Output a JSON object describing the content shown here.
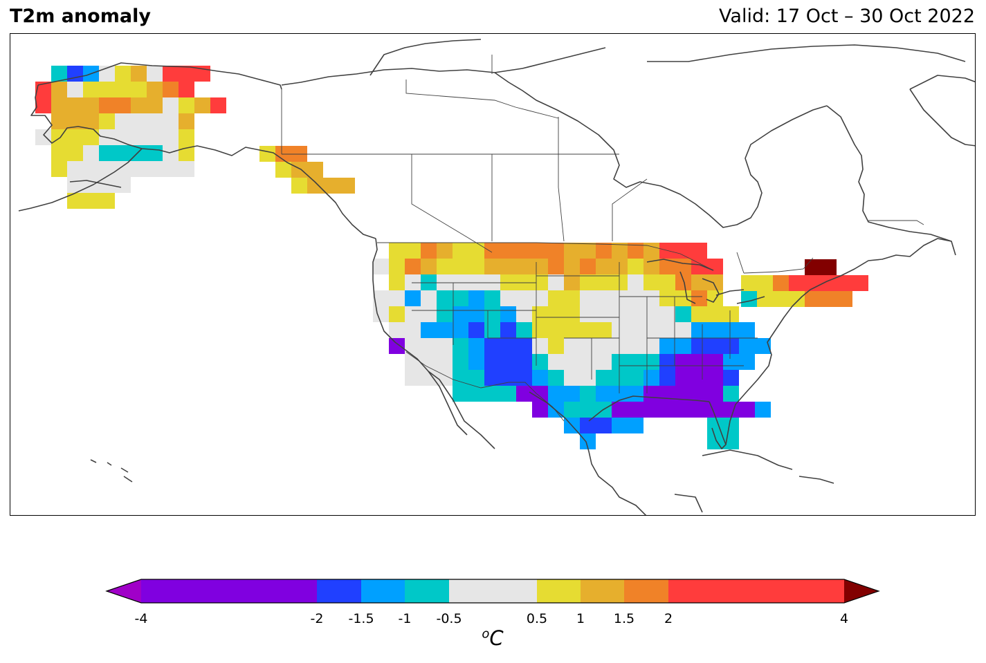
{
  "header": {
    "title": "T2m anomaly",
    "valid": "Valid: 17 Oct – 30 Oct 2022"
  },
  "colorbar": {
    "unit": "C",
    "unit_prefix": "o",
    "ticks": [
      "-4",
      "-2",
      "-1.5",
      "-1",
      "-0.5",
      "0.5",
      "1",
      "1.5",
      "2",
      "4"
    ],
    "bins": [
      {
        "from": -4,
        "to": -2,
        "color": "#8000e0"
      },
      {
        "from": -2,
        "to": -1.5,
        "color": "#2040ff"
      },
      {
        "from": -1.5,
        "to": -1,
        "color": "#00a0ff"
      },
      {
        "from": -1,
        "to": -0.5,
        "color": "#00c8c8"
      },
      {
        "from": -0.5,
        "to": 0.5,
        "color": "#e6e6e6"
      },
      {
        "from": 0.5,
        "to": 1,
        "color": "#e6dc32"
      },
      {
        "from": 1,
        "to": 1.5,
        "color": "#e6af2d"
      },
      {
        "from": 1.5,
        "to": 2,
        "color": "#f08228"
      },
      {
        "from": 2,
        "to": 4,
        "color": "#ff3c3c"
      }
    ],
    "under_color": "#a000c8",
    "over_color": "#820000"
  },
  "map_data": {
    "region": "North America",
    "projection": "PlateCarree",
    "features": [
      "coastlines",
      "country borders",
      "US state borders",
      "Canadian province borders"
    ],
    "regions_summary": [
      {
        "region": "Northern Alaska",
        "anomaly": "0.5 to 4"
      },
      {
        "region": "Southern Alaska",
        "anomaly": "-1 to 0.5"
      },
      {
        "region": "Northern Plains / Upper Midwest",
        "anomaly": "1 to 4"
      },
      {
        "region": "Northern Maine",
        "anomaly": "> 4"
      },
      {
        "region": "Southern Plains / Texas",
        "anomaly": "-2 to -1"
      },
      {
        "region": "Gulf Coast / Deep South",
        "anomaly": "-4 to -2"
      },
      {
        "region": "Florida",
        "anomaly": "-1 to -0.5"
      }
    ]
  }
}
